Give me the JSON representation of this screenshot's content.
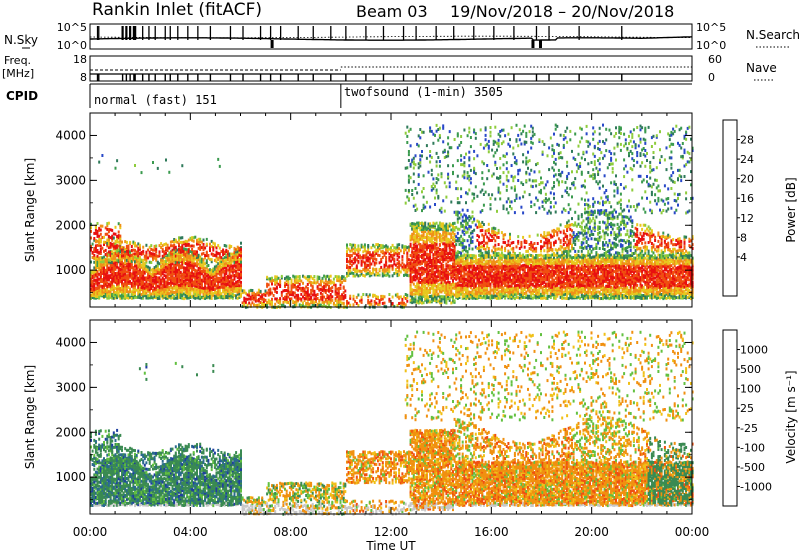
{
  "header": {
    "radar_title": "Rankin Inlet (fitACF)",
    "beam_label": "Beam 03",
    "date_range": "19/Nov/2018 – 20/Nov/2018"
  },
  "strip_panels": {
    "nsky_label": "N.Sky",
    "nsky_ticks": [
      "10^5",
      "10^0"
    ],
    "nsearch_label": "N.Search",
    "nsearch_ticks": [
      "10^5",
      "10^0"
    ],
    "freq_label": "Freq.",
    "freq_unit": "[MHz]",
    "freq_ticks": [
      "18",
      "8"
    ],
    "nave_label": "Nave",
    "nave_ticks": [
      "60",
      "0"
    ],
    "cpid_label": "CPID",
    "cpid_modes": [
      {
        "name": "normal (fast) 151",
        "start_hour": 0
      },
      {
        "name": "twofsound (1-min) 3505",
        "start_hour": 10
      }
    ]
  },
  "chart_data": [
    {
      "type": "heatmap",
      "ylabel": "Slant Range [km]",
      "xlabel": "",
      "x_range_hours": [
        0,
        24
      ],
      "ylim": [
        180,
        4500
      ],
      "y_ticks": [
        "1000",
        "2000",
        "3000",
        "4000"
      ],
      "colorbar_label": "Power [dB]",
      "colorbar_ticks": [
        "28",
        "24",
        "20",
        "16",
        "12",
        "8",
        "4"
      ],
      "colorbar_range": [
        0,
        32
      ],
      "colors": [
        "#1010e8",
        "#2848c8",
        "#2f7a5a",
        "#3a9a4e",
        "#8ecc3c",
        "#e8c81e",
        "#f09018",
        "#f05010",
        "#e81010"
      ]
    },
    {
      "type": "heatmap",
      "ylabel": "Slant Range [km]",
      "xlabel": "Time UT",
      "x_range_hours": [
        0,
        24
      ],
      "ylim": [
        180,
        4500
      ],
      "y_ticks": [
        "1000",
        "2000",
        "3000",
        "4000"
      ],
      "x_ticks": [
        "00:00",
        "04:00",
        "08:00",
        "12:00",
        "16:00",
        "20:00",
        "00:00"
      ],
      "colorbar_label": "Velocity [m s⁻¹]",
      "colorbar_ticks": [
        "1000",
        "500",
        "100",
        "25",
        "-25",
        "-100",
        "-500",
        "-1000"
      ],
      "colors": [
        "#1f3fa0",
        "#2a6a8e",
        "#3a8a52",
        "#62c040",
        "#c8c8c8",
        "#f0c018",
        "#f09010",
        "#f05010",
        "#e81010"
      ]
    }
  ]
}
